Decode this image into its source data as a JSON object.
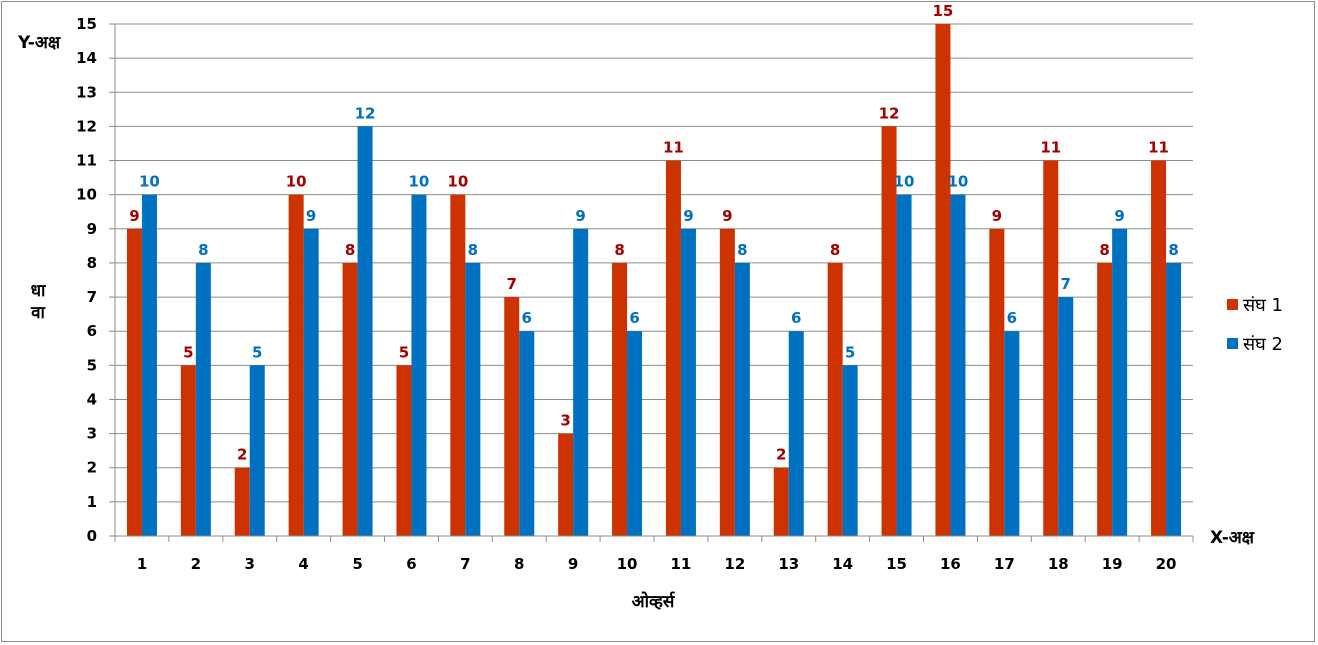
{
  "chart_data": {
    "type": "bar",
    "categories": [
      "1",
      "2",
      "3",
      "4",
      "5",
      "6",
      "7",
      "8",
      "9",
      "10",
      "11",
      "12",
      "13",
      "14",
      "15",
      "16",
      "17",
      "18",
      "19",
      "20"
    ],
    "series": [
      {
        "name": "संघ 1",
        "values": [
          9,
          5,
          2,
          10,
          8,
          5,
          10,
          7,
          3,
          8,
          11,
          9,
          2,
          8,
          12,
          15,
          9,
          11,
          8,
          11
        ],
        "color": "#cc3300",
        "label_color": "#a50000"
      },
      {
        "name": "संघ 2",
        "values": [
          10,
          8,
          5,
          9,
          12,
          10,
          8,
          6,
          9,
          6,
          9,
          8,
          6,
          5,
          10,
          10,
          6,
          7,
          9,
          8
        ],
        "color": "#0070c0",
        "label_color": "#0070c0"
      }
    ],
    "y_ticks": [
      "0",
      "1",
      "2",
      "3",
      "4",
      "5",
      "6",
      "7",
      "8",
      "9",
      "10",
      "11",
      "12",
      "13",
      "14",
      "15"
    ],
    "ylim": [
      0,
      15
    ],
    "grid": true,
    "data_labels": true,
    "legend_position": "right",
    "xlabel": "ओव्हर्स",
    "ylabel": "धावा",
    "x_axis_name": "X-अक्ष",
    "y_axis_name": "Y-अक्ष",
    "gridline_color": "#8c8c8c",
    "axis_color": "#8c8c8c"
  }
}
